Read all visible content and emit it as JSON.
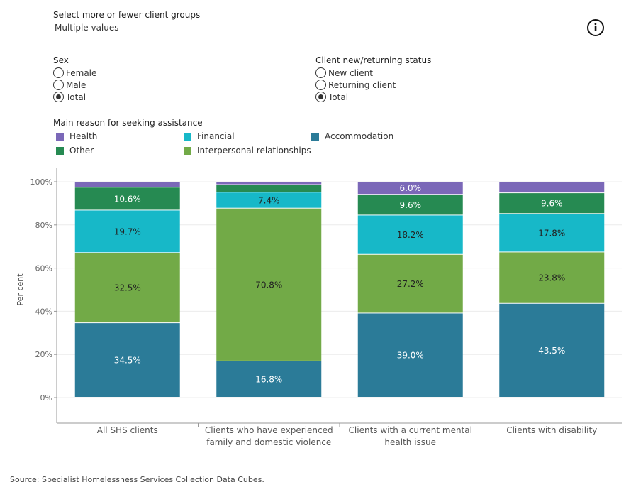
{
  "filters": {
    "client_groups": {
      "title": "Select more or fewer client groups",
      "value": "Multiple values"
    },
    "info_icon": "info-icon",
    "sex": {
      "title": "Sex",
      "options": [
        {
          "label": "Female",
          "checked": false
        },
        {
          "label": "Male",
          "checked": false
        },
        {
          "label": "Total",
          "checked": true
        }
      ]
    },
    "status": {
      "title": "Client new/returning status",
      "options": [
        {
          "label": "New client",
          "checked": false
        },
        {
          "label": "Returning client",
          "checked": false
        },
        {
          "label": "Total",
          "checked": true
        }
      ]
    }
  },
  "legend": {
    "title": "Main reason for seeking assistance",
    "items": [
      {
        "label": "Health",
        "color": "#7b68b8"
      },
      {
        "label": "Financial",
        "color": "#17b8c8"
      },
      {
        "label": "Accommodation",
        "color": "#2b7b98"
      },
      {
        "label": "Other",
        "color": "#268a52"
      },
      {
        "label": "Interpersonal relationships",
        "color": "#72aa47"
      }
    ]
  },
  "chart_data": {
    "type": "bar",
    "stacked": true,
    "ylabel": "Per cent",
    "ylim": [
      0,
      100
    ],
    "yticks": [
      "0%",
      "20%",
      "40%",
      "60%",
      "80%",
      "100%"
    ],
    "grid": true,
    "categories": [
      [
        "All SHS clients"
      ],
      [
        "Clients who have experienced",
        "family and domestic violence"
      ],
      [
        "Clients with a current mental",
        "health issue"
      ],
      [
        "Clients with disability"
      ]
    ],
    "series": [
      {
        "name": "Accommodation",
        "color": "#2b7b98",
        "values": [
          34.5,
          16.8,
          39.0,
          43.5
        ],
        "labels": [
          "34.5%",
          "16.8%",
          "39.0%",
          "43.5%"
        ]
      },
      {
        "name": "Interpersonal relationships",
        "color": "#72aa47",
        "values": [
          32.5,
          70.8,
          27.2,
          23.8
        ],
        "labels": [
          "32.5%",
          "70.8%",
          "27.2%",
          "23.8%"
        ]
      },
      {
        "name": "Financial",
        "color": "#17b8c8",
        "values": [
          19.7,
          7.4,
          18.2,
          17.8
        ],
        "labels": [
          "19.7%",
          "7.4%",
          "18.2%",
          "17.8%"
        ]
      },
      {
        "name": "Other",
        "color": "#268a52",
        "values": [
          10.6,
          3.5,
          9.6,
          9.6
        ],
        "labels": [
          "10.6%",
          "",
          "9.6%",
          "9.6%"
        ]
      },
      {
        "name": "Health",
        "color": "#7b68b8",
        "values": [
          2.7,
          1.5,
          6.0,
          5.3
        ],
        "labels": [
          "",
          "",
          "6.0%",
          ""
        ]
      }
    ]
  },
  "source": "Source: Specialist Homelessness Services Collection Data Cubes."
}
